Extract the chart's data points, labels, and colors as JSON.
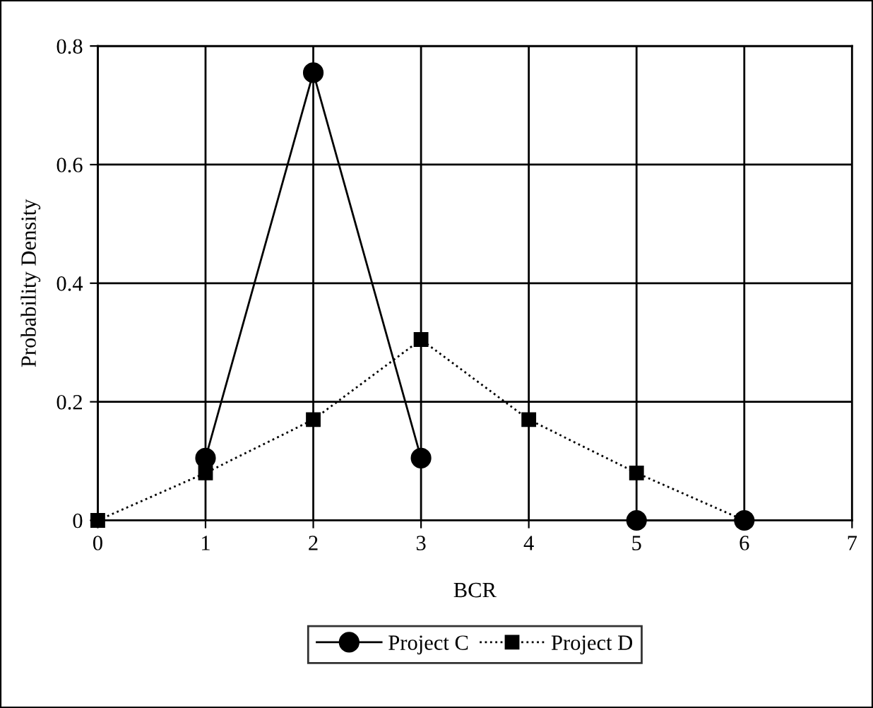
{
  "chart_data": {
    "type": "line",
    "xlabel": "BCR",
    "ylabel": "Probability Density",
    "x": [
      0,
      1,
      2,
      3,
      4,
      5,
      6
    ],
    "series": [
      {
        "name": "Project C",
        "color": "#000000",
        "marker": "circle",
        "line_style": "solid",
        "x": [
          1,
          2,
          3
        ],
        "values": [
          0.105,
          0.755,
          0.105
        ]
      },
      {
        "color": "#000000",
        "marker": "circle",
        "line_style": "solid",
        "x": [
          5,
          6
        ],
        "values": [
          0,
          0
        ]
      },
      {
        "name": "Project D",
        "color": "#000000",
        "marker": "square",
        "line_style": "dotted",
        "values": [
          0,
          0.08,
          0.17,
          0.305,
          0.17,
          0.08,
          0
        ]
      }
    ],
    "xlim": [
      0,
      7
    ],
    "xticks": [
      0,
      1,
      2,
      3,
      4,
      5,
      6,
      7
    ],
    "ylim": [
      0,
      0.8
    ],
    "yticks": [
      0,
      0.2,
      0.4,
      0.6,
      0.8
    ],
    "grid": true,
    "legend": "bottom"
  }
}
